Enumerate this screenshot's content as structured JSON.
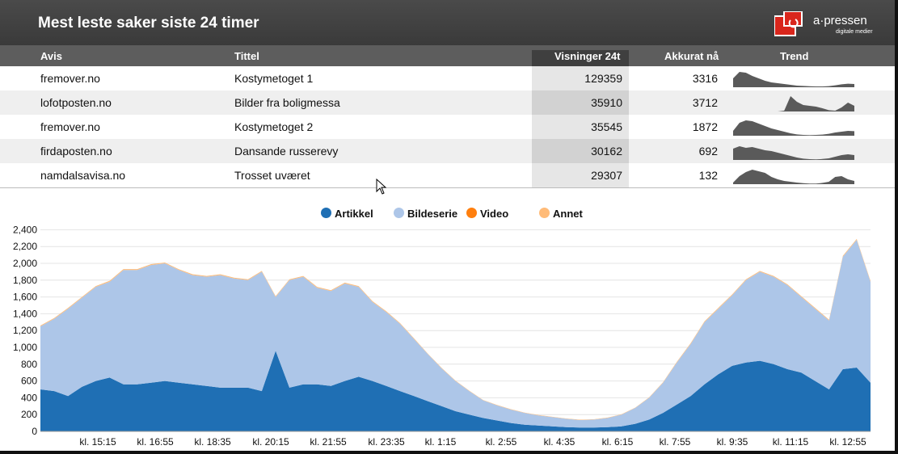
{
  "header": {
    "title": "Mest leste saker siste 24 timer",
    "logo_text": "a·pressen",
    "logo_sub": "digitale medier"
  },
  "table": {
    "columns": [
      "Avis",
      "Tittel",
      "Visninger 24t",
      "Akkurat nå",
      "Trend"
    ],
    "rows": [
      {
        "avis": "fremover.no",
        "tittel": "Kostymetoget 1",
        "visninger": "129359",
        "akkurat": "3316",
        "trend": [
          0.55,
          0.95,
          0.9,
          0.7,
          0.55,
          0.4,
          0.3,
          0.25,
          0.2,
          0.15,
          0.1,
          0.08,
          0.06,
          0.05,
          0.05,
          0.07,
          0.12,
          0.18,
          0.22,
          0.2
        ]
      },
      {
        "avis": "lofotposten.no",
        "tittel": "Bilder fra boligmessa",
        "visninger": "35910",
        "akkurat": "3712",
        "trend": [
          0,
          0,
          0,
          0,
          0,
          0,
          0,
          0,
          0.05,
          0.95,
          0.6,
          0.4,
          0.35,
          0.3,
          0.2,
          0.08,
          0.05,
          0.25,
          0.55,
          0.35
        ]
      },
      {
        "avis": "fremover.no",
        "tittel": "Kostymetoget 2",
        "visninger": "35545",
        "akkurat": "1872",
        "trend": [
          0.3,
          0.8,
          0.95,
          0.9,
          0.75,
          0.6,
          0.45,
          0.35,
          0.25,
          0.15,
          0.08,
          0.05,
          0.04,
          0.05,
          0.07,
          0.12,
          0.2,
          0.25,
          0.3,
          0.28
        ]
      },
      {
        "avis": "firdaposten.no",
        "tittel": "Dansande russerevy",
        "visninger": "30162",
        "akkurat": "692",
        "trend": [
          0.7,
          0.85,
          0.75,
          0.8,
          0.7,
          0.6,
          0.55,
          0.45,
          0.35,
          0.25,
          0.15,
          0.08,
          0.05,
          0.04,
          0.06,
          0.1,
          0.2,
          0.3,
          0.35,
          0.3
        ]
      },
      {
        "avis": "namdalsavisa.no",
        "tittel": "Trosset uværet",
        "visninger": "29307",
        "akkurat": "132",
        "trend": [
          0.1,
          0.5,
          0.75,
          0.9,
          0.8,
          0.7,
          0.45,
          0.3,
          0.2,
          0.15,
          0.1,
          0.06,
          0.04,
          0.04,
          0.08,
          0.15,
          0.45,
          0.5,
          0.3,
          0.2
        ]
      }
    ]
  },
  "legend": [
    {
      "label": "Artikkel",
      "color": "#1f6fb4"
    },
    {
      "label": "Bildeserie",
      "color": "#adc6e8"
    },
    {
      "label": "Video",
      "color": "#ff7f0e"
    },
    {
      "label": "Annet",
      "color": "#ffbb78"
    }
  ],
  "chart_data": {
    "type": "area",
    "stacked": true,
    "y_ticks": [
      "0",
      "200",
      "400",
      "600",
      "800",
      "1,000",
      "1,200",
      "1,400",
      "1,600",
      "1,800",
      "2,000",
      "2,200",
      "2,400"
    ],
    "ylim": [
      0,
      2500
    ],
    "x_ticks": [
      "kl. 15:15",
      "kl. 16:55",
      "kl. 18:35",
      "kl. 20:15",
      "kl. 21:55",
      "kl. 23:35",
      "kl. 1:15",
      "kl. 2:55",
      "kl. 4:35",
      "kl. 6:15",
      "kl. 7:55",
      "kl. 9:35",
      "kl. 11:15",
      "kl. 12:55"
    ],
    "grid": true,
    "legend_position": "top",
    "series": [
      {
        "name": "Artikkel",
        "values": [
          500,
          480,
          420,
          530,
          600,
          640,
          560,
          560,
          580,
          600,
          580,
          560,
          540,
          520,
          520,
          520,
          480,
          960,
          520,
          560,
          560,
          540,
          600,
          650,
          600,
          540,
          480,
          420,
          360,
          300,
          240,
          200,
          160,
          130,
          100,
          80,
          70,
          60,
          50,
          45,
          45,
          50,
          60,
          90,
          140,
          220,
          320,
          420,
          560,
          680,
          780,
          820,
          840,
          800,
          740,
          700,
          600,
          500,
          740,
          760,
          580
        ]
      },
      {
        "name": "Bildeserie",
        "values": [
          750,
          860,
          1040,
          1060,
          1120,
          1140,
          1360,
          1360,
          1400,
          1400,
          1340,
          1300,
          1300,
          1340,
          1300,
          1280,
          1420,
          640,
          1280,
          1280,
          1150,
          1130,
          1160,
          1070,
          940,
          880,
          800,
          680,
          560,
          450,
          360,
          280,
          210,
          180,
          160,
          140,
          120,
          110,
          100,
          90,
          95,
          110,
          140,
          190,
          260,
          360,
          500,
          620,
          740,
          780,
          840,
          980,
          1060,
          1040,
          1000,
          900,
          860,
          820,
          1340,
          1520,
          1200
        ]
      },
      {
        "name": "Video",
        "values": [
          0,
          0,
          0,
          0,
          0,
          0,
          0,
          0,
          0,
          0,
          0,
          0,
          0,
          0,
          0,
          0,
          0,
          0,
          0,
          0,
          0,
          0,
          0,
          0,
          0,
          0,
          0,
          0,
          0,
          0,
          0,
          0,
          0,
          0,
          0,
          0,
          0,
          0,
          0,
          0,
          0,
          0,
          0,
          0,
          0,
          0,
          0,
          0,
          0,
          0,
          0,
          0,
          0,
          0,
          0,
          0,
          0,
          0,
          0,
          0,
          0
        ]
      },
      {
        "name": "Annet",
        "values": [
          10,
          10,
          10,
          10,
          10,
          12,
          12,
          12,
          10,
          10,
          10,
          10,
          10,
          10,
          10,
          10,
          10,
          10,
          10,
          10,
          10,
          10,
          10,
          10,
          10,
          10,
          8,
          8,
          6,
          6,
          5,
          5,
          4,
          4,
          4,
          4,
          4,
          4,
          4,
          4,
          4,
          4,
          4,
          4,
          5,
          6,
          8,
          10,
          10,
          10,
          10,
          10,
          10,
          10,
          10,
          10,
          10,
          10,
          10,
          10,
          10
        ]
      }
    ]
  }
}
